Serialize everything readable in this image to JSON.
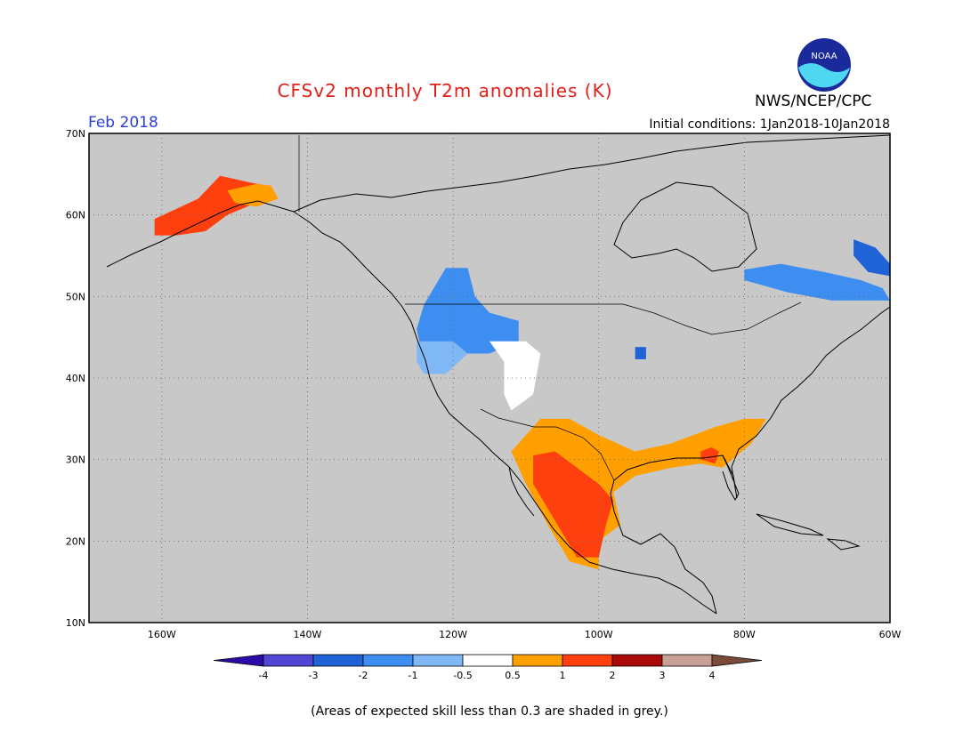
{
  "title": "CFSv2 monthly T2m anomalies (K)",
  "month_label": "Feb 2018",
  "initial_conditions": "Initial conditions: 1Jan2018-10Jan2018",
  "agency": "NWS/NCEP/CPC",
  "logo_text": "NOAA",
  "footnote": "(Areas of expected skill less than 0.3 are shaded in grey.)",
  "map": {
    "lon_range": [
      -170,
      -60
    ],
    "lat_range": [
      10,
      70
    ],
    "lat_ticks": [
      {
        "value": 70,
        "label": "70N"
      },
      {
        "value": 60,
        "label": "60N"
      },
      {
        "value": 50,
        "label": "50N"
      },
      {
        "value": 40,
        "label": "40N"
      },
      {
        "value": 30,
        "label": "30N"
      },
      {
        "value": 20,
        "label": "20N"
      },
      {
        "value": 10,
        "label": "10N"
      }
    ],
    "lon_ticks": [
      {
        "value": -160,
        "label": "160W"
      },
      {
        "value": -140,
        "label": "140W"
      },
      {
        "value": -120,
        "label": "120W"
      },
      {
        "value": -100,
        "label": "100W"
      },
      {
        "value": -80,
        "label": "80W"
      },
      {
        "value": -60,
        "label": "60W"
      }
    ],
    "grid": true,
    "background_color": "#c8c8c8",
    "anomaly_regions": [
      {
        "name": "alaska-warm",
        "color": "#ff3f0d",
        "points": [
          [
            -161,
            59.5
          ],
          [
            -155,
            62
          ],
          [
            -152,
            64.8
          ],
          [
            -148,
            64
          ],
          [
            -145,
            63.5
          ],
          [
            -147,
            61.5
          ],
          [
            -151,
            60
          ],
          [
            -154,
            58
          ],
          [
            -158,
            57.5
          ],
          [
            -161,
            57.5
          ]
        ]
      },
      {
        "name": "alaska-moderate",
        "color": "#ffa000",
        "points": [
          [
            -151,
            63
          ],
          [
            -147,
            63.8
          ],
          [
            -145,
            63.6
          ],
          [
            -144,
            62
          ],
          [
            -147,
            61
          ],
          [
            -150,
            61.5
          ]
        ]
      },
      {
        "name": "pacific-nw-cool",
        "color": "#3d8ef0",
        "points": [
          [
            -124,
            49
          ],
          [
            -121,
            53.5
          ],
          [
            -118,
            53.5
          ],
          [
            -117,
            50
          ],
          [
            -115,
            48
          ],
          [
            -111,
            47
          ],
          [
            -111,
            44.5
          ],
          [
            -115,
            43
          ],
          [
            -119,
            43
          ],
          [
            -121,
            41.5
          ],
          [
            -124,
            42
          ],
          [
            -125,
            46
          ]
        ]
      },
      {
        "name": "oregon-light-cool",
        "color": "#7fb8f4",
        "points": [
          [
            -125,
            44.5
          ],
          [
            -120,
            44.5
          ],
          [
            -118,
            43
          ],
          [
            -121,
            40.5
          ],
          [
            -124,
            40.5
          ],
          [
            -125,
            42
          ]
        ]
      },
      {
        "name": "great-lakes-cool",
        "color": "#1f63d6",
        "points": [
          [
            -95,
            43.8
          ],
          [
            -93.5,
            43.8
          ],
          [
            -93.5,
            42.3
          ],
          [
            -95,
            42.3
          ]
        ]
      },
      {
        "name": "quebec-cool",
        "color": "#3d8ef0",
        "points": [
          [
            -80,
            53.3
          ],
          [
            -75,
            54
          ],
          [
            -69,
            53
          ],
          [
            -64,
            52
          ],
          [
            -61,
            51
          ],
          [
            -60,
            49.5
          ],
          [
            -68,
            49.5
          ],
          [
            -74,
            50.5
          ],
          [
            -80,
            52
          ]
        ]
      },
      {
        "name": "labrador-cool",
        "color": "#1f63d6",
        "points": [
          [
            -65,
            57
          ],
          [
            -62,
            56
          ],
          [
            -60,
            54
          ],
          [
            -60,
            52.5
          ],
          [
            -63,
            53
          ],
          [
            -65,
            55
          ]
        ]
      },
      {
        "name": "rockies-neutral",
        "color": "#ffffff",
        "points": [
          [
            -115,
            44.5
          ],
          [
            -110,
            44.5
          ],
          [
            -108,
            43
          ],
          [
            -109,
            38
          ],
          [
            -112,
            36
          ],
          [
            -113,
            38
          ],
          [
            -113,
            42
          ]
        ]
      },
      {
        "name": "gulf-moderate",
        "color": "#ffa000",
        "points": [
          [
            -112,
            31
          ],
          [
            -108,
            35
          ],
          [
            -104,
            35
          ],
          [
            -100,
            33
          ],
          [
            -95,
            31
          ],
          [
            -90,
            32
          ],
          [
            -84,
            34
          ],
          [
            -80,
            35
          ],
          [
            -77,
            35
          ],
          [
            -79,
            32
          ],
          [
            -83,
            29
          ],
          [
            -86,
            29.5
          ],
          [
            -90,
            29
          ],
          [
            -95,
            28
          ],
          [
            -98,
            26
          ],
          [
            -97,
            22
          ],
          [
            -100,
            20
          ],
          [
            -100,
            16.5
          ],
          [
            -104,
            17.5
          ],
          [
            -107,
            22
          ],
          [
            -110,
            27
          ]
        ]
      },
      {
        "name": "mexico-warm",
        "color": "#ff3f0d",
        "points": [
          [
            -109,
            30.5
          ],
          [
            -106,
            31
          ],
          [
            -103,
            29
          ],
          [
            -100,
            27
          ],
          [
            -98,
            25
          ],
          [
            -99,
            22
          ],
          [
            -100,
            18
          ],
          [
            -103,
            18
          ],
          [
            -105,
            21
          ],
          [
            -107,
            24
          ],
          [
            -109,
            27
          ]
        ]
      },
      {
        "name": "southeast-warm",
        "color": "#ff3f0d",
        "points": [
          [
            -86,
            31
          ],
          [
            -84.5,
            31.5
          ],
          [
            -83.5,
            31
          ],
          [
            -84,
            29.5
          ],
          [
            -86,
            30
          ]
        ]
      }
    ],
    "colorbar": {
      "colors": [
        "#2a0aa8",
        "#4f47d4",
        "#1f63d6",
        "#3d8ef0",
        "#7fb8f4",
        "#ffffff",
        "#ffa000",
        "#ff3f0d",
        "#a80a0a",
        "#c8a095",
        "#7a4a3a"
      ],
      "labels": [
        "-4",
        "-3",
        "-2",
        "-1",
        "-0.5",
        "0.5",
        "1",
        "2",
        "3",
        "4"
      ]
    }
  }
}
